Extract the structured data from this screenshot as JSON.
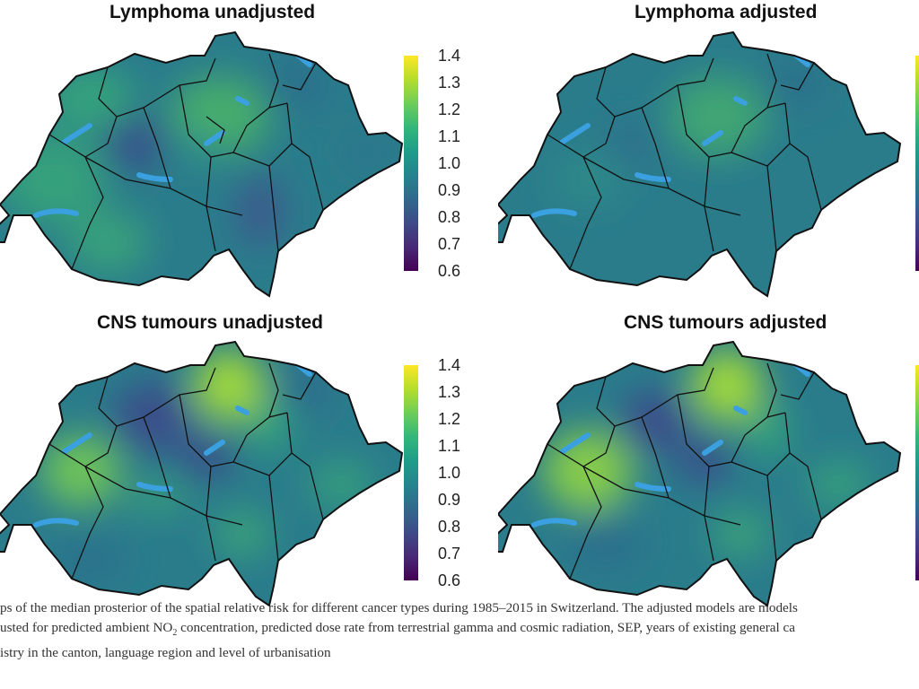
{
  "panels": [
    {
      "title": "Lymphoma unadjusted"
    },
    {
      "title": "Lymphoma adjusted"
    },
    {
      "title": "CNS tumours unadjusted"
    },
    {
      "title": "CNS tumours adjusted"
    }
  ],
  "legend": {
    "ticks": [
      "1.4",
      "1.3",
      "1.2",
      "1.1",
      "1.0",
      "0.9",
      "0.8",
      "0.7",
      "0.6"
    ],
    "min": 0.6,
    "max": 1.4,
    "colormap": "viridis",
    "colors": [
      "#440154",
      "#482878",
      "#3e4a89",
      "#31688e",
      "#26828e",
      "#1f9e89",
      "#35b779",
      "#6ece58",
      "#b5de2b",
      "#fde725"
    ]
  },
  "map": {
    "base_color": "#2b7d8a",
    "border_color": "#111111",
    "lake_color": "#3aa0e0"
  },
  "caption": {
    "line1": "ps of the median prosterior of the spatial relative risk for different cancer types during 1985–2015 in Switzerland. The adjusted models are models",
    "line2_pre": "usted for predicted ambient NO",
    "line2_sub": "2",
    "line2_post": " concentration, predicted dose rate from terrestrial gamma and cosmic radiation, SEP, years of existing general ca",
    "line3": "istry in the canton, language region and level of urbanisation"
  }
}
